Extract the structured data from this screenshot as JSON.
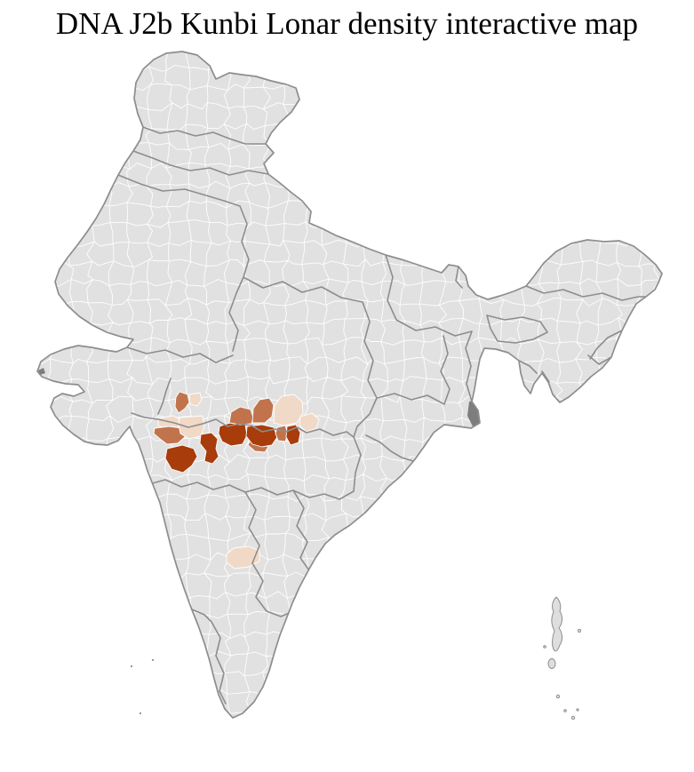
{
  "page": {
    "title": "DNA J2b Kunbi Lonar density interactive map",
    "background_color": "#ffffff"
  },
  "map": {
    "palette": {
      "land_base": "#e1e1e1",
      "district_border": "#ffffff",
      "state_border": "#8d8d8d",
      "outline": "#8d8d8d",
      "density_low": "#f1d9c7",
      "density_mid": "#c1744c",
      "density_high": "#a83c0a",
      "island_fill": "#dedede",
      "water_shade": "#7d7d7d"
    },
    "highlight_summary": {
      "high_count": 5,
      "mid_count": 6,
      "low_count": 6
    }
  }
}
